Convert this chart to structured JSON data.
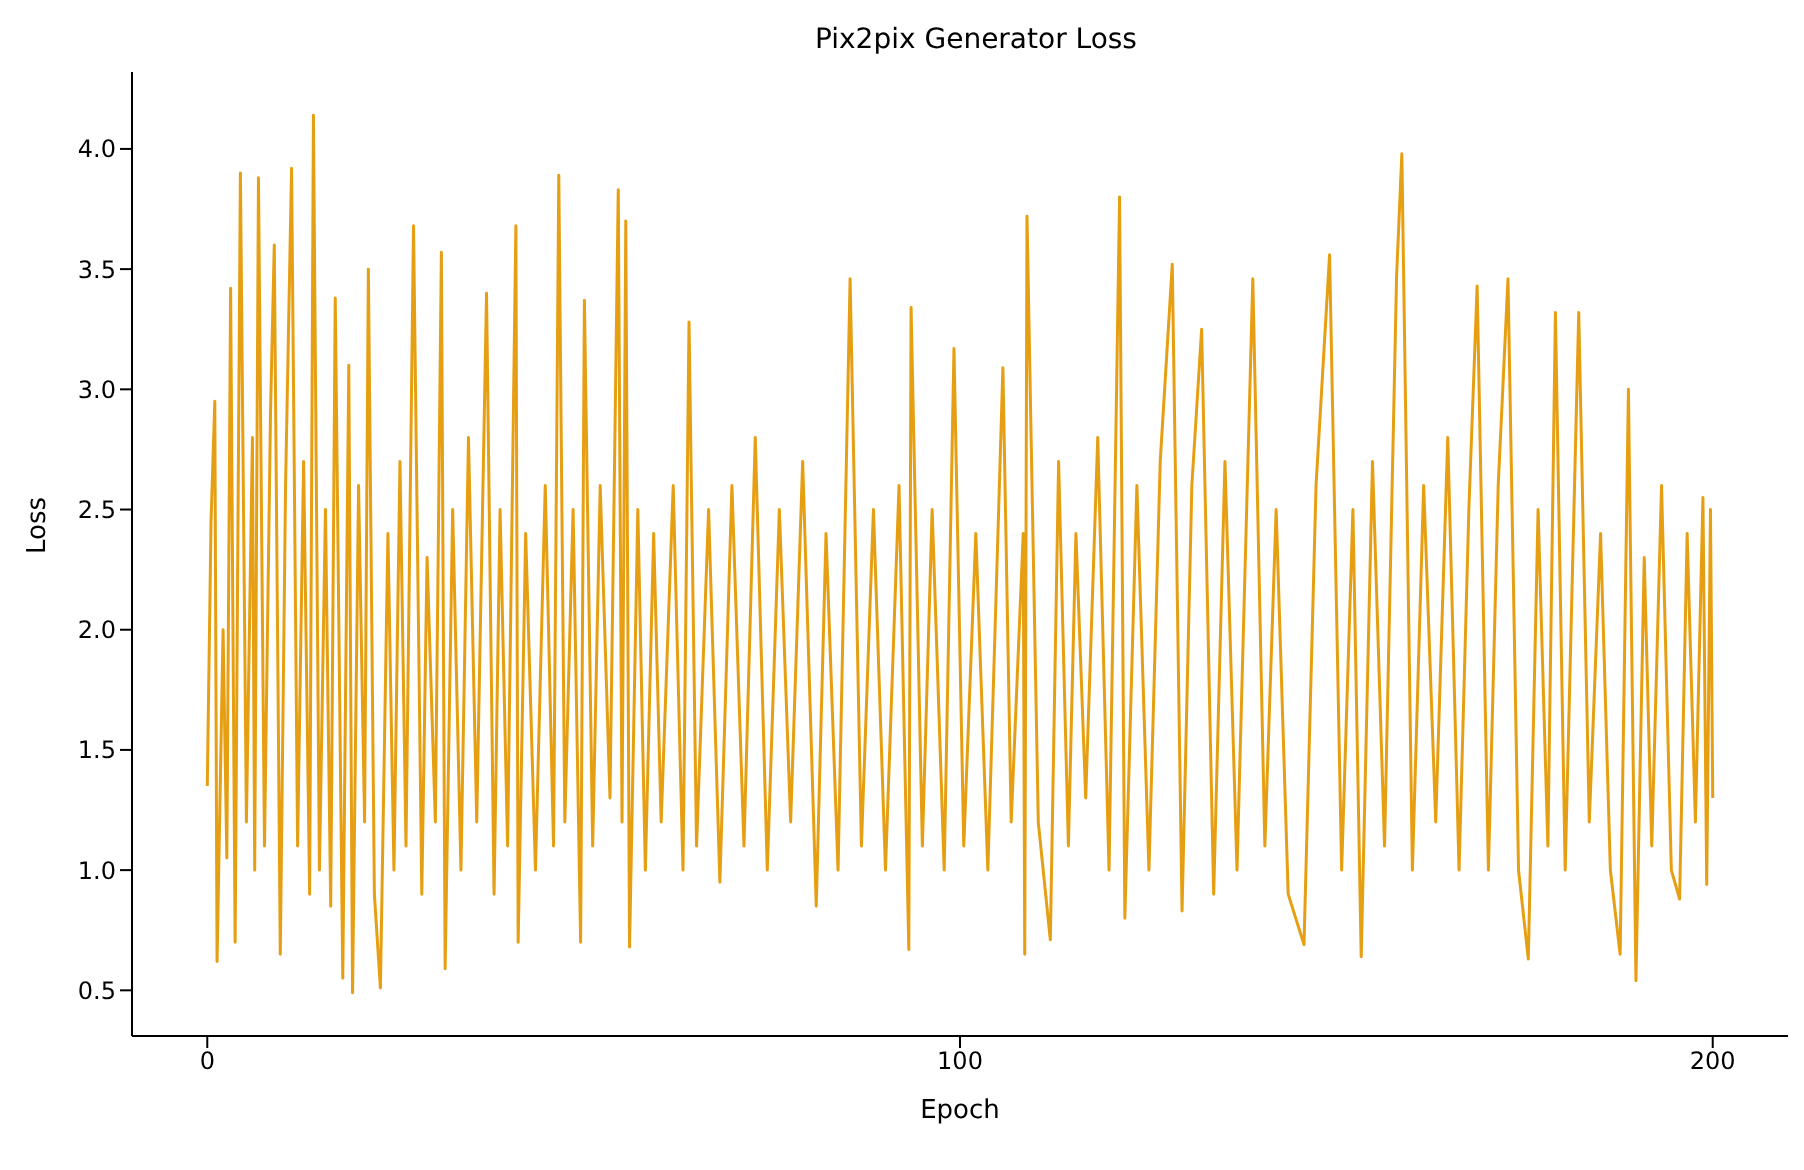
{
  "chart_data": {
    "type": "line",
    "title": "Pix2pix Generator Loss",
    "xlabel": "Epoch",
    "ylabel": "Loss",
    "x": [
      0,
      0.5,
      1.0,
      1.3,
      2.1,
      2.6,
      3.1,
      3.7,
      4.4,
      5.2,
      6.0,
      6.3,
      6.8,
      7.6,
      8.4,
      8.9,
      9.7,
      10.4,
      11.2,
      12.0,
      12.8,
      13.6,
      14.1,
      14.9,
      15.7,
      16.4,
      17.0,
      18.0,
      18.8,
      19.3,
      20.1,
      20.9,
      21.4,
      22.2,
      23.0,
      24.0,
      24.8,
      25.6,
      26.4,
      27.4,
      28.5,
      29.2,
      30.3,
      31.1,
      31.6,
      32.6,
      33.7,
      34.7,
      35.8,
      37.1,
      38.1,
      38.9,
      39.9,
      41.0,
      41.3,
      42.3,
      43.6,
      44.9,
      46.0,
      46.7,
      47.5,
      48.6,
      49.6,
      50.1,
      51.2,
      52.2,
      53.5,
      54.6,
      55.1,
      55.6,
      56.1,
      57.2,
      58.2,
      59.3,
      60.3,
      61.9,
      63.2,
      64.0,
      65.0,
      66.6,
      68.1,
      69.7,
      71.3,
      72.8,
      74.4,
      76.0,
      77.5,
      79.1,
      80.9,
      82.2,
      83.8,
      85.4,
      86.9,
      88.5,
      90.1,
      91.9,
      93.2,
      93.5,
      95.0,
      96.3,
      97.9,
      99.2,
      100.5,
      102.1,
      103.7,
      105.7,
      106.8,
      108.4,
      108.6,
      108.9,
      110.4,
      112.0,
      113.1,
      114.4,
      115.4,
      116.7,
      118.3,
      119.8,
      121.2,
      121.9,
      123.5,
      125.1,
      126.6,
      128.2,
      129.5,
      130.8,
      132.1,
      133.7,
      135.2,
      136.8,
      138.9,
      140.5,
      142.0,
      143.6,
      145.7,
      147.3,
      149.1,
      150.7,
      152.2,
      153.3,
      154.8,
      156.4,
      158.0,
      158.7,
      160.1,
      161.6,
      163.2,
      164.8,
      166.3,
      167.6,
      168.7,
      170.2,
      171.5,
      172.8,
      174.2,
      175.5,
      176.8,
      178.1,
      179.1,
      180.4,
      182.2,
      183.6,
      185.1,
      186.4,
      187.7,
      188.8,
      189.8,
      190.9,
      191.9,
      193.2,
      194.5,
      195.6,
      196.6,
      197.7,
      198.7,
      199.2,
      199.7,
      200.0
    ],
    "series": [
      {
        "color": "#e69f12",
        "values": [
          1.35,
          2.45,
          2.95,
          0.62,
          2.0,
          1.05,
          3.42,
          0.7,
          3.9,
          1.2,
          2.8,
          1.0,
          3.88,
          1.1,
          2.9,
          3.6,
          0.65,
          2.6,
          3.92,
          1.1,
          2.7,
          0.9,
          4.14,
          1.0,
          2.5,
          0.85,
          3.38,
          0.55,
          3.1,
          0.49,
          2.6,
          1.2,
          3.5,
          0.9,
          0.51,
          2.4,
          1.0,
          2.7,
          1.1,
          3.68,
          0.9,
          2.3,
          1.2,
          3.57,
          0.59,
          2.5,
          1.0,
          2.8,
          1.2,
          3.4,
          0.9,
          2.5,
          1.1,
          3.68,
          0.7,
          2.4,
          1.0,
          2.6,
          1.1,
          3.89,
          1.2,
          2.5,
          0.7,
          3.37,
          1.1,
          2.6,
          1.3,
          3.83,
          1.2,
          3.7,
          0.68,
          2.5,
          1.0,
          2.4,
          1.2,
          2.6,
          1.0,
          3.28,
          1.1,
          2.5,
          0.95,
          2.6,
          1.1,
          2.8,
          1.0,
          2.5,
          1.2,
          2.7,
          0.85,
          2.4,
          1.0,
          3.46,
          1.1,
          2.5,
          1.0,
          2.6,
          0.67,
          3.34,
          1.1,
          2.5,
          1.0,
          3.17,
          1.1,
          2.4,
          1.0,
          3.09,
          1.2,
          2.4,
          0.65,
          3.72,
          1.2,
          0.71,
          2.7,
          1.1,
          2.4,
          1.3,
          2.8,
          1.0,
          3.8,
          0.8,
          2.6,
          1.0,
          2.7,
          3.52,
          0.83,
          2.6,
          3.25,
          0.9,
          2.7,
          1.0,
          3.46,
          1.1,
          2.5,
          0.9,
          0.69,
          2.6,
          3.56,
          1.0,
          2.5,
          0.64,
          2.7,
          1.1,
          3.47,
          3.98,
          1.0,
          2.6,
          1.2,
          2.8,
          1.0,
          2.5,
          3.43,
          1.0,
          2.6,
          3.46,
          1.0,
          0.63,
          2.5,
          1.1,
          3.32,
          1.0,
          3.32,
          1.2,
          2.4,
          1.0,
          0.65,
          3.0,
          0.54,
          2.3,
          1.1,
          2.6,
          1.0,
          0.88,
          2.4,
          1.2,
          2.55,
          0.94,
          2.5,
          1.3
        ]
      }
    ],
    "xlim": [
      -10,
      210
    ],
    "xticks": [
      0,
      100,
      200
    ],
    "ylim": [
      0.31,
      4.32
    ],
    "yticks": [
      {
        "value": 0.5,
        "label": "0.5"
      },
      {
        "value": 1,
        "label": "1.0"
      },
      {
        "value": 1.5,
        "label": "1.5"
      },
      {
        "value": 2,
        "label": "2.0"
      },
      {
        "value": 2.5,
        "label": "2.5"
      },
      {
        "value": 3,
        "label": "3.0"
      },
      {
        "value": 3.5,
        "label": "3.5"
      },
      {
        "value": 4,
        "label": "4.0"
      }
    ],
    "grid": false,
    "legend": false,
    "marker": "none",
    "line_style": "solid"
  }
}
